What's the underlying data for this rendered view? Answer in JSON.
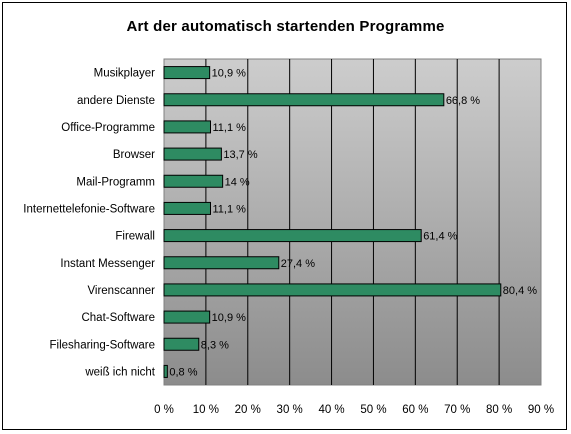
{
  "chart_data": {
    "type": "bar",
    "orientation": "horizontal",
    "title": "Art der automatisch startenden Programme",
    "categories": [
      "Musikplayer",
      "andere Dienste",
      "Office-Programme",
      "Browser",
      "Mail-Programm",
      "Internettelefonie-Software",
      "Firewall",
      "Instant Messenger",
      "Virenscanner",
      "Chat-Software",
      "Filesharing-Software",
      "weiß ich nicht"
    ],
    "values": [
      10.9,
      66.8,
      11.1,
      13.7,
      14,
      11.1,
      61.4,
      27.4,
      80.4,
      10.9,
      8.3,
      0.8
    ],
    "value_labels": [
      "10,9 %",
      "66,8 %",
      "11,1 %",
      "13,7 %",
      "14 %",
      "11,1 %",
      "61,4 %",
      "27,4 %",
      "80,4 %",
      "10,9 %",
      "8,3 %",
      "0,8 %"
    ],
    "xlim": [
      0,
      90
    ],
    "x_ticks": [
      "0 %",
      "10 %",
      "20 %",
      "30 %",
      "40 %",
      "50 %",
      "60 %",
      "70 %",
      "80 %",
      "90 %"
    ],
    "grid": true,
    "bar_color": "#2e8b62",
    "plot_background": "gradient gray"
  }
}
